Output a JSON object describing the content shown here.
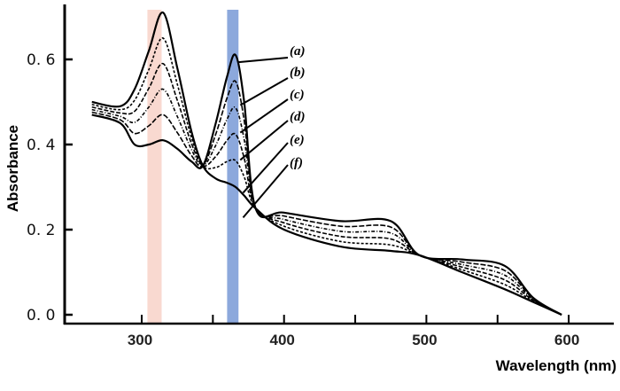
{
  "chart_data": {
    "type": "line",
    "title": "",
    "xlabel": "Wavelength (nm)",
    "ylabel": "Absorbance",
    "xlim": [
      260,
      630
    ],
    "ylim": [
      0.0,
      0.72
    ],
    "xticks": [
      300,
      400,
      500,
      600
    ],
    "xtick_labels": [
      "300",
      "400",
      "500",
      "600"
    ],
    "xminor_ticks": [
      350,
      450,
      550
    ],
    "yticks": [
      0.0,
      0.2,
      0.4,
      0.6
    ],
    "ytick_labels": [
      "0. 0",
      "0. 2",
      "0. 4",
      "0. 6"
    ],
    "grid": false,
    "line_color": "#000000",
    "x": [
      265,
      285,
      295,
      305,
      315,
      325,
      335,
      343,
      352,
      360,
      366,
      372,
      380,
      400,
      440,
      475,
      495,
      525,
      555,
      575,
      595
    ],
    "series": [
      {
        "name": "(a)",
        "label_at": 366,
        "values": [
          0.47,
          0.45,
          0.4,
          0.4,
          0.41,
          0.39,
          0.36,
          0.35,
          0.45,
          0.56,
          0.61,
          0.5,
          0.25,
          0.24,
          0.22,
          0.22,
          0.14,
          0.13,
          0.115,
          0.04,
          0.0
        ]
      },
      {
        "name": "(b)",
        "label_at": 368,
        "values": [
          0.476,
          0.458,
          0.426,
          0.444,
          0.47,
          0.428,
          0.374,
          0.35,
          0.424,
          0.51,
          0.548,
          0.456,
          0.25,
          0.232,
          0.208,
          0.206,
          0.14,
          0.124,
          0.104,
          0.038,
          0.0
        ]
      },
      {
        "name": "(c)",
        "label_at": 368,
        "values": [
          0.482,
          0.466,
          0.452,
          0.488,
          0.53,
          0.466,
          0.388,
          0.35,
          0.398,
          0.46,
          0.486,
          0.412,
          0.25,
          0.224,
          0.196,
          0.192,
          0.14,
          0.118,
          0.093,
          0.036,
          0.0
        ]
      },
      {
        "name": "(d)",
        "label_at": 368,
        "values": [
          0.488,
          0.474,
          0.478,
          0.532,
          0.59,
          0.504,
          0.402,
          0.35,
          0.372,
          0.41,
          0.424,
          0.368,
          0.25,
          0.216,
          0.184,
          0.178,
          0.14,
          0.112,
          0.082,
          0.034,
          0.0
        ]
      },
      {
        "name": "(e)",
        "label_at": 370,
        "values": [
          0.494,
          0.482,
          0.504,
          0.576,
          0.65,
          0.542,
          0.416,
          0.35,
          0.346,
          0.36,
          0.362,
          0.324,
          0.25,
          0.208,
          0.172,
          0.164,
          0.14,
          0.106,
          0.071,
          0.032,
          0.0
        ]
      },
      {
        "name": "(f)",
        "label_at": 370,
        "values": [
          0.5,
          0.49,
          0.53,
          0.62,
          0.71,
          0.58,
          0.43,
          0.35,
          0.32,
          0.31,
          0.3,
          0.28,
          0.25,
          0.2,
          0.16,
          0.15,
          0.14,
          0.1,
          0.06,
          0.03,
          0.0
        ]
      }
    ],
    "highlight_bands": [
      {
        "range": [
          304,
          314
        ],
        "color": "#f8d5cb"
      },
      {
        "range": [
          360,
          368
        ],
        "color": "#7f9fd8"
      }
    ]
  }
}
